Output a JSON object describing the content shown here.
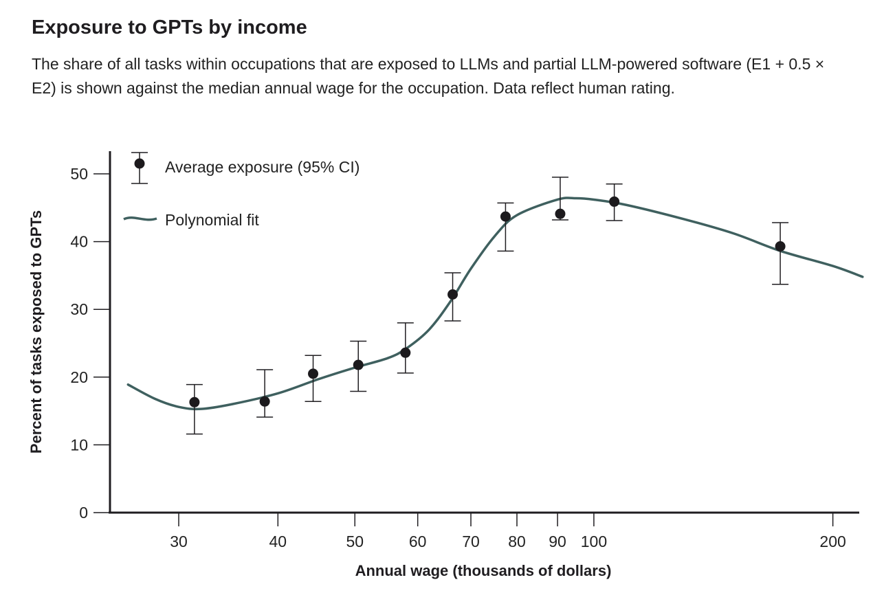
{
  "chart_data": {
    "type": "scatter",
    "title": "Exposure to GPTs by income",
    "subtitle": "The share of all tasks within occupations that are exposed to LLMs and partial LLM-powered software (E1 + 0.5 × E2) is shown against the median annual wage for the occupation. Data reflect human rating.",
    "xlabel": "Annual wage (thousands of dollars)",
    "ylabel": "Percent of tasks exposed to GPTs",
    "x_scale": "log",
    "xlim": [
      24.5,
      224
    ],
    "ylim": [
      0,
      53
    ],
    "x_ticks": [
      30,
      40,
      50,
      60,
      70,
      80,
      90,
      100,
      200
    ],
    "x_tick_labels": [
      "30",
      "40",
      "50",
      "60",
      "70",
      "80",
      "90",
      "100",
      "200"
    ],
    "y_ticks": [
      0,
      10,
      20,
      30,
      40,
      50
    ],
    "y_tick_labels": [
      "0",
      "10",
      "20",
      "30",
      "40",
      "50"
    ],
    "grid": false,
    "legend": {
      "placement": "top-left",
      "entries": [
        "Average exposure (95% CI)",
        "Polynomial fit"
      ]
    },
    "colors": {
      "points": "#1c1a1d",
      "fit": "#3f605f"
    },
    "series": [
      {
        "name": "Average exposure (95% CI)",
        "type": "scatter-errorbar",
        "points": [
          {
            "x": 31.4,
            "y": 16.3,
            "lo": 11.6,
            "hi": 18.9
          },
          {
            "x": 38.5,
            "y": 16.4,
            "lo": 14.1,
            "hi": 21.1
          },
          {
            "x": 44.3,
            "y": 20.5,
            "lo": 16.4,
            "hi": 23.2
          },
          {
            "x": 50.5,
            "y": 21.8,
            "lo": 17.9,
            "hi": 25.3
          },
          {
            "x": 57.9,
            "y": 23.6,
            "lo": 20.6,
            "hi": 28.0
          },
          {
            "x": 66.4,
            "y": 32.2,
            "lo": 28.3,
            "hi": 35.4
          },
          {
            "x": 77.4,
            "y": 43.7,
            "lo": 38.6,
            "hi": 45.7
          },
          {
            "x": 90.7,
            "y": 44.1,
            "lo": 43.2,
            "hi": 49.5
          },
          {
            "x": 106.1,
            "y": 45.9,
            "lo": 43.1,
            "hi": 48.5
          },
          {
            "x": 171.7,
            "y": 39.3,
            "lo": 33.7,
            "hi": 42.8
          }
        ]
      },
      {
        "name": "Polynomial fit",
        "type": "line",
        "x": [
          25.9,
          28,
          30,
          32,
          35,
          40,
          45,
          50,
          55,
          58,
          62,
          66,
          70,
          75,
          80,
          90,
          95,
          100,
          110,
          130,
          150,
          172,
          200,
          218
        ],
        "y": [
          18.9,
          16.8,
          15.6,
          15.3,
          16.0,
          17.6,
          19.7,
          21.4,
          22.8,
          24.2,
          27.0,
          31.2,
          36.0,
          40.8,
          43.9,
          46.2,
          46.4,
          46.2,
          45.4,
          43.3,
          41.2,
          38.6,
          36.4,
          34.8
        ]
      }
    ]
  }
}
